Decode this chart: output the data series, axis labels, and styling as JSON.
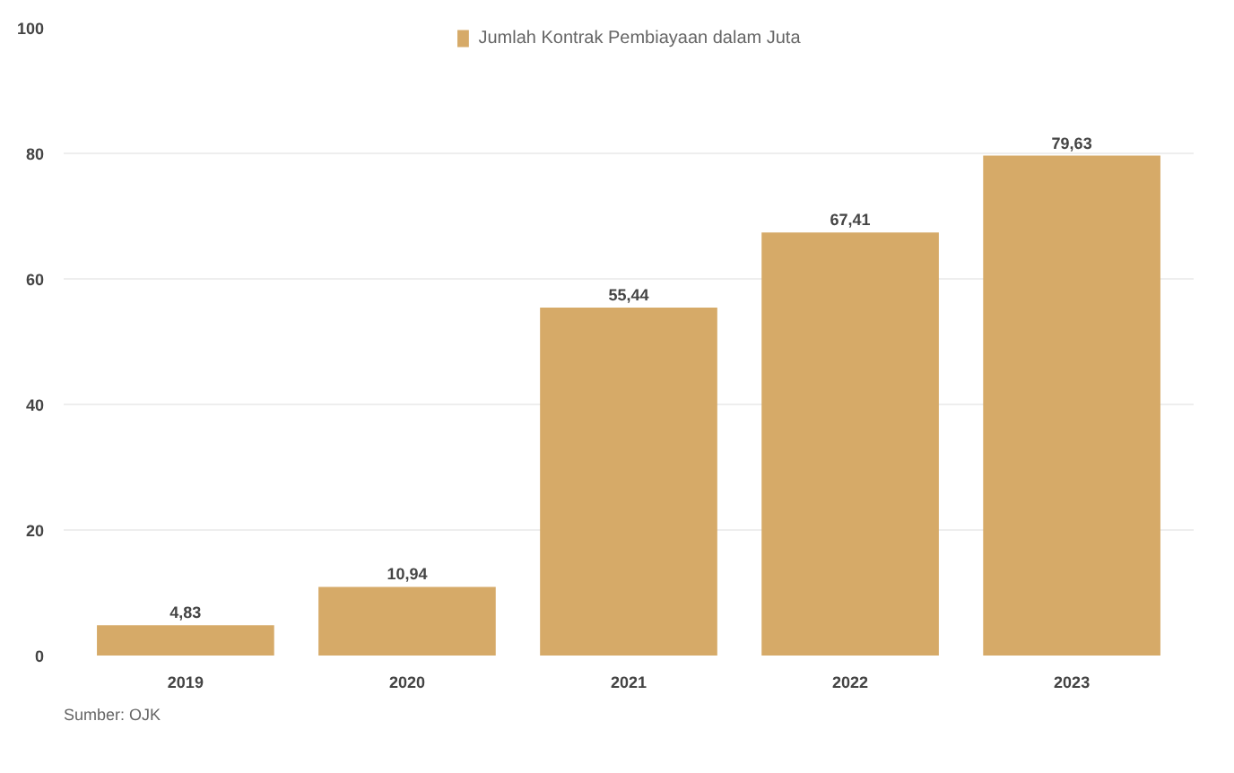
{
  "chart_data": {
    "type": "bar",
    "categories": [
      "2019",
      "2020",
      "2021",
      "2022",
      "2023"
    ],
    "series": [
      {
        "name": "Jumlah Kontrak Pembiayaan dalam Juta",
        "color": "#d6aa68",
        "values": [
          4.83,
          10.94,
          55.44,
          67.41,
          79.63
        ],
        "value_labels": [
          "4,83",
          "10,94",
          "55,44",
          "67,41",
          "79,63"
        ]
      }
    ],
    "ylim": [
      0,
      100
    ],
    "yticks": [
      0,
      20,
      40,
      60,
      80,
      100
    ],
    "grid": "y",
    "legend": "top",
    "annotations": [
      "Sumber: OJK"
    ]
  }
}
